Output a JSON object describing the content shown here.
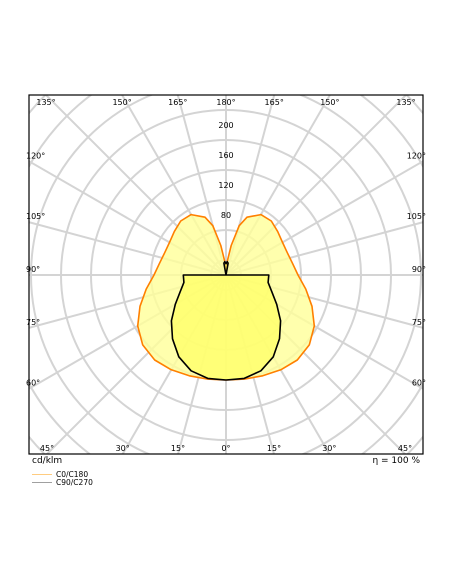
{
  "chart_data": {
    "type": "polar",
    "unit": "cd/klm",
    "efficiency": "η = 100 %",
    "radial_ticks": [
      80,
      120,
      160,
      200
    ],
    "r_max": 240,
    "angle_ticks": [
      {
        "angle": 135,
        "label": "135°"
      },
      {
        "angle": 150,
        "label": "150°"
      },
      {
        "angle": 165,
        "label": "165°"
      },
      {
        "angle": 180,
        "label": "180°"
      },
      {
        "angle": -165,
        "label": "165°"
      },
      {
        "angle": -150,
        "label": "150°"
      },
      {
        "angle": -135,
        "label": "135°"
      },
      {
        "angle": 120,
        "label": "120°"
      },
      {
        "angle": -120,
        "label": "120°"
      },
      {
        "angle": 105,
        "label": "105°"
      },
      {
        "angle": -105,
        "label": "105°"
      },
      {
        "angle": 90,
        "label": "90°"
      },
      {
        "angle": -90,
        "label": "90°"
      },
      {
        "angle": 75,
        "label": "75°"
      },
      {
        "angle": -75,
        "label": "75°"
      },
      {
        "angle": 60,
        "label": "60°"
      },
      {
        "angle": -60,
        "label": "60°"
      },
      {
        "angle": 45,
        "label": "45°"
      },
      {
        "angle": 30,
        "label": "30°"
      },
      {
        "angle": 15,
        "label": "15°"
      },
      {
        "angle": 0,
        "label": "0°"
      },
      {
        "angle": -15,
        "label": "15°"
      },
      {
        "angle": -30,
        "label": "30°"
      },
      {
        "angle": -45,
        "label": "45°"
      }
    ],
    "series": [
      {
        "name": "C0/C180",
        "color": "#ff7f00",
        "fill": "#ffff99",
        "angles": [
          0,
          10,
          20,
          30,
          40,
          50,
          60,
          70,
          80,
          90,
          100,
          110,
          120,
          130,
          140,
          150,
          160,
          165,
          170,
          175,
          180
        ],
        "values": [
          140,
          141,
          143,
          146,
          148,
          145,
          136,
          122,
          108,
          96,
          90,
          87,
          87,
          90,
          94,
          93,
          82,
          68,
          40,
          18,
          8
        ]
      },
      {
        "name": "C90/C270",
        "color": "#000000",
        "fill": "#ffff66",
        "angles": [
          0,
          10,
          20,
          30,
          40,
          50,
          60,
          70,
          80,
          90,
          100,
          110,
          120,
          130,
          140,
          150,
          160,
          170,
          175,
          180
        ],
        "values": [
          140,
          140,
          136,
          126,
          111,
          95,
          78,
          65,
          57,
          57,
          0,
          0,
          0,
          0,
          0,
          0,
          0,
          16,
          18,
          15
        ]
      }
    ]
  },
  "legend": [
    {
      "label": "C0/C180",
      "color": "#ffcc80"
    },
    {
      "label": "C90/C270",
      "color": "#a0a0a0"
    }
  ]
}
